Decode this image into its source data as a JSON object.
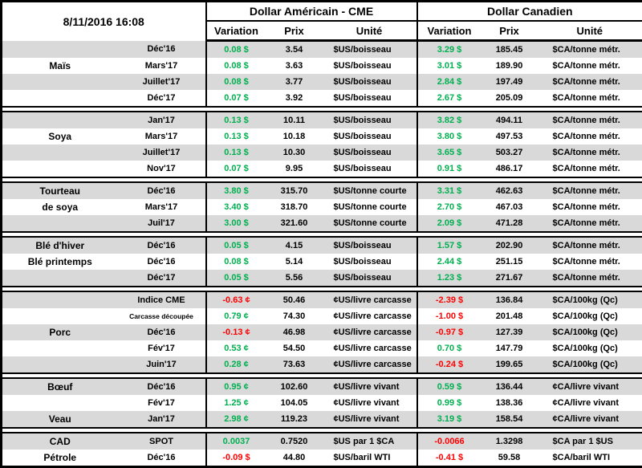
{
  "header": {
    "timestamp": "8/11/2016 16:08",
    "usd_group": "Dollar Américain - CME",
    "cad_group": "Dollar Canadien",
    "columns": [
      "Variation",
      "Prix",
      "Unité"
    ]
  },
  "colors": {
    "positive": "#00B050",
    "negative": "#FF0000",
    "stripe": "#D9D9D9",
    "border": "#000000"
  },
  "sections": [
    {
      "name": "Maïs",
      "rows": [
        {
          "commodity": "",
          "month": "Déc'16",
          "usd": {
            "variation": "0.08 $",
            "trend": "up",
            "prix": "3.54",
            "unite": "$US/boisseau"
          },
          "cad": {
            "variation": "3.29 $",
            "trend": "up",
            "prix": "185.45",
            "unite": "$CA/tonne métr."
          }
        },
        {
          "commodity": "Maïs",
          "month": "Mars'17",
          "usd": {
            "variation": "0.08 $",
            "trend": "up",
            "prix": "3.63",
            "unite": "$US/boisseau"
          },
          "cad": {
            "variation": "3.01 $",
            "trend": "up",
            "prix": "189.90",
            "unite": "$CA/tonne métr."
          }
        },
        {
          "commodity": "",
          "month": "Juillet'17",
          "usd": {
            "variation": "0.08 $",
            "trend": "up",
            "prix": "3.77",
            "unite": "$US/boisseau"
          },
          "cad": {
            "variation": "2.84 $",
            "trend": "up",
            "prix": "197.49",
            "unite": "$CA/tonne métr."
          }
        },
        {
          "commodity": "",
          "month": "Déc'17",
          "usd": {
            "variation": "0.07 $",
            "trend": "up",
            "prix": "3.92",
            "unite": "$US/boisseau"
          },
          "cad": {
            "variation": "2.67 $",
            "trend": "up",
            "prix": "205.09",
            "unite": "$CA/tonne métr."
          }
        }
      ]
    },
    {
      "name": "Soya",
      "rows": [
        {
          "commodity": "",
          "month": "Jan'17",
          "usd": {
            "variation": "0.13 $",
            "trend": "up",
            "prix": "10.11",
            "unite": "$US/boisseau"
          },
          "cad": {
            "variation": "3.82 $",
            "trend": "up",
            "prix": "494.11",
            "unite": "$CA/tonne métr."
          }
        },
        {
          "commodity": "Soya",
          "month": "Mars'17",
          "usd": {
            "variation": "0.13 $",
            "trend": "up",
            "prix": "10.18",
            "unite": "$US/boisseau"
          },
          "cad": {
            "variation": "3.80 $",
            "trend": "up",
            "prix": "497.53",
            "unite": "$CA/tonne métr."
          }
        },
        {
          "commodity": "",
          "month": "Juillet'17",
          "usd": {
            "variation": "0.13 $",
            "trend": "up",
            "prix": "10.30",
            "unite": "$US/boisseau"
          },
          "cad": {
            "variation": "3.65 $",
            "trend": "up",
            "prix": "503.27",
            "unite": "$CA/tonne métr."
          }
        },
        {
          "commodity": "",
          "month": "Nov'17",
          "usd": {
            "variation": "0.07 $",
            "trend": "up",
            "prix": "9.95",
            "unite": "$US/boisseau"
          },
          "cad": {
            "variation": "0.91 $",
            "trend": "up",
            "prix": "486.17",
            "unite": "$CA/tonne métr."
          }
        }
      ]
    },
    {
      "name": "Tourteau de soya",
      "rows": [
        {
          "commodity": "Tourteau",
          "month": "Déc'16",
          "usd": {
            "variation": "3.80 $",
            "trend": "up",
            "prix": "315.70",
            "unite": "$US/tonne courte"
          },
          "cad": {
            "variation": "3.31 $",
            "trend": "up",
            "prix": "462.63",
            "unite": "$CA/tonne métr."
          }
        },
        {
          "commodity": "de soya",
          "month": "Mars'17",
          "usd": {
            "variation": "3.40 $",
            "trend": "up",
            "prix": "318.70",
            "unite": "$US/tonne courte"
          },
          "cad": {
            "variation": "2.70 $",
            "trend": "up",
            "prix": "467.03",
            "unite": "$CA/tonne métr."
          }
        },
        {
          "commodity": "",
          "month": "Juil'17",
          "usd": {
            "variation": "3.00 $",
            "trend": "up",
            "prix": "321.60",
            "unite": "$US/tonne courte"
          },
          "cad": {
            "variation": "2.09 $",
            "trend": "up",
            "prix": "471.28",
            "unite": "$CA/tonne métr."
          }
        }
      ]
    },
    {
      "name": "Blé",
      "rows": [
        {
          "commodity": "Blé d'hiver",
          "month": "Déc'16",
          "usd": {
            "variation": "0.05 $",
            "trend": "up",
            "prix": "4.15",
            "unite": "$US/boisseau"
          },
          "cad": {
            "variation": "1.57 $",
            "trend": "up",
            "prix": "202.90",
            "unite": "$CA/tonne métr."
          }
        },
        {
          "commodity": "Blé printemps",
          "month": "Déc'16",
          "usd": {
            "variation": "0.08 $",
            "trend": "up",
            "prix": "5.14",
            "unite": "$US/boisseau"
          },
          "cad": {
            "variation": "2.44 $",
            "trend": "up",
            "prix": "251.15",
            "unite": "$CA/tonne métr."
          }
        },
        {
          "commodity": "",
          "month": "Déc'17",
          "usd": {
            "variation": "0.05 $",
            "trend": "up",
            "prix": "5.56",
            "unite": "$US/boisseau"
          },
          "cad": {
            "variation": "1.23 $",
            "trend": "up",
            "prix": "271.67",
            "unite": "$CA/tonne métr."
          }
        }
      ]
    },
    {
      "name": "Porc",
      "rows": [
        {
          "commodity": "",
          "month": "Indice CME",
          "usd": {
            "variation": "-0.63 ¢",
            "trend": "down",
            "prix": "50.46",
            "unite": "¢US/livre carcasse"
          },
          "cad": {
            "variation": "-2.39 $",
            "trend": "down",
            "prix": "136.84",
            "unite": "$CA/100kg (Qc)"
          }
        },
        {
          "commodity": "",
          "month": "Carcasse découpée",
          "month_small": true,
          "usd": {
            "variation": "0.79 ¢",
            "trend": "up",
            "prix": "74.30",
            "unite": "¢US/livre carcasse"
          },
          "cad": {
            "variation": "-1.00 $",
            "trend": "down",
            "prix": "201.48",
            "unite": "$CA/100kg (Qc)"
          }
        },
        {
          "commodity": "Porc",
          "month": "Déc'16",
          "usd": {
            "variation": "-0.13 ¢",
            "trend": "down",
            "prix": "46.98",
            "unite": "¢US/livre carcasse"
          },
          "cad": {
            "variation": "-0.97 $",
            "trend": "down",
            "prix": "127.39",
            "unite": "$CA/100kg (Qc)"
          }
        },
        {
          "commodity": "",
          "month": "Fév'17",
          "usd": {
            "variation": "0.53 ¢",
            "trend": "up",
            "prix": "54.50",
            "unite": "¢US/livre carcasse"
          },
          "cad": {
            "variation": "0.70 $",
            "trend": "up",
            "prix": "147.79",
            "unite": "$CA/100kg (Qc)"
          }
        },
        {
          "commodity": "",
          "month": "Juin'17",
          "usd": {
            "variation": "0.28 ¢",
            "trend": "up",
            "prix": "73.63",
            "unite": "¢US/livre carcasse"
          },
          "cad": {
            "variation": "-0.24 $",
            "trend": "down",
            "prix": "199.65",
            "unite": "$CA/100kg (Qc)"
          }
        }
      ]
    },
    {
      "name": "Bœuf / Veau",
      "rows": [
        {
          "commodity": "Bœuf",
          "month": "Déc'16",
          "usd": {
            "variation": "0.95 ¢",
            "trend": "up",
            "prix": "102.60",
            "unite": "¢US/livre vivant"
          },
          "cad": {
            "variation": "0.59 $",
            "trend": "up",
            "prix": "136.44",
            "unite": "¢CA/livre vivant"
          }
        },
        {
          "commodity": "",
          "month": "Fév'17",
          "usd": {
            "variation": "1.25 ¢",
            "trend": "up",
            "prix": "104.05",
            "unite": "¢US/livre vivant"
          },
          "cad": {
            "variation": "0.99 $",
            "trend": "up",
            "prix": "138.36",
            "unite": "¢CA/livre vivant"
          }
        },
        {
          "commodity": "Veau",
          "month": "Jan'17",
          "usd": {
            "variation": "2.98 ¢",
            "trend": "up",
            "prix": "119.23",
            "unite": "¢US/livre vivant"
          },
          "cad": {
            "variation": "3.19 $",
            "trend": "up",
            "prix": "158.54",
            "unite": "¢CA/livre vivant"
          }
        }
      ]
    },
    {
      "name": "CAD / Pétrole",
      "rows": [
        {
          "commodity": "CAD",
          "month": "SPOT",
          "usd": {
            "variation": "0.0037",
            "trend": "up",
            "prix": "0.7520",
            "unite": "$US par 1 $CA"
          },
          "cad": {
            "variation": "-0.0066",
            "trend": "down",
            "prix": "1.3298",
            "unite": "$CA par 1 $US"
          }
        },
        {
          "commodity": "Pétrole",
          "month": "Déc'16",
          "usd": {
            "variation": "-0.09 $",
            "trend": "down",
            "prix": "44.80",
            "unite": "$US/baril WTI"
          },
          "cad": {
            "variation": "-0.41 $",
            "trend": "down",
            "prix": "59.58",
            "unite": "$CA/baril WTI"
          }
        }
      ]
    }
  ]
}
